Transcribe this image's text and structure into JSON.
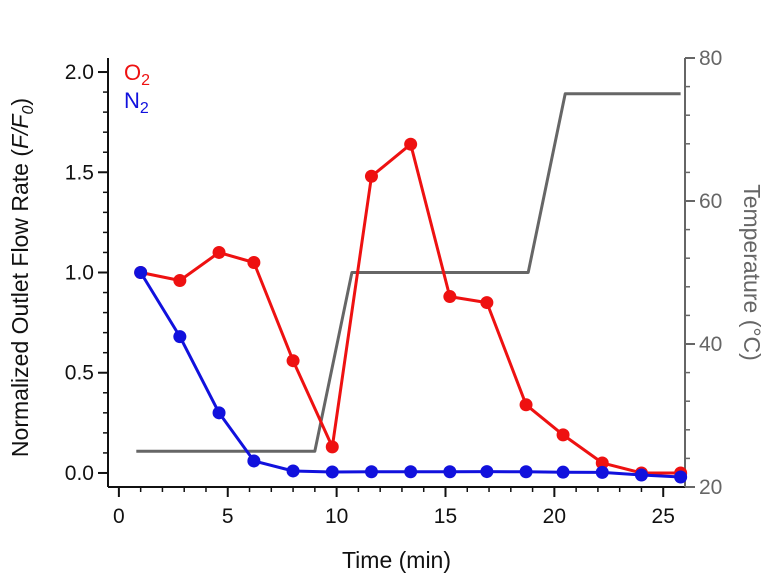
{
  "chart_data": {
    "type": "line",
    "xlabel": "Time (min)",
    "ylabel_left": {
      "main": "Normalized Outlet Flow Rate (",
      "italic": "F/F",
      "sub": "0",
      "close": ")"
    },
    "ylabel_right": "Temperature (°C)",
    "xlim": [
      -0.5,
      26
    ],
    "ylim_left": [
      -0.07,
      2.07
    ],
    "ylim_right": [
      20,
      80
    ],
    "x_ticks": [
      0,
      5,
      10,
      15,
      20,
      25
    ],
    "y_ticks_left": [
      "0.0",
      "0.5",
      "1.0",
      "1.5",
      "2.0"
    ],
    "y_ticks_right": [
      20,
      40,
      60,
      80
    ],
    "grid": false,
    "legend_position": "top-left",
    "series": [
      {
        "name": "O2",
        "legend": {
          "base": "O",
          "sub": "2"
        },
        "axis": "left",
        "color": "#ee1111",
        "markers": true,
        "x": [
          1.0,
          2.8,
          4.6,
          6.2,
          8.0,
          9.8,
          11.6,
          13.4,
          15.2,
          16.9,
          18.7,
          20.4,
          22.2,
          24.0,
          25.8
        ],
        "y": [
          1.0,
          0.96,
          1.1,
          1.05,
          0.56,
          0.13,
          1.48,
          1.64,
          0.88,
          0.85,
          0.34,
          0.19,
          0.05,
          0.0,
          0.0
        ]
      },
      {
        "name": "N2",
        "legend": {
          "base": "N",
          "sub": "2"
        },
        "axis": "left",
        "color": "#1111dd",
        "markers": true,
        "x": [
          1.0,
          2.8,
          4.6,
          6.2,
          8.0,
          9.8,
          11.6,
          13.4,
          15.2,
          16.9,
          18.7,
          20.4,
          22.2,
          24.0,
          25.8
        ],
        "y": [
          1.0,
          0.68,
          0.3,
          0.06,
          0.01,
          0.005,
          0.006,
          0.006,
          0.006,
          0.007,
          0.006,
          0.004,
          0.003,
          -0.01,
          -0.02
        ]
      },
      {
        "name": "Temperature",
        "axis": "right",
        "color": "#666666",
        "markers": false,
        "x": [
          0.8,
          9.0,
          10.7,
          18.8,
          20.5,
          25.8
        ],
        "y": [
          25,
          25,
          50,
          50,
          75,
          75
        ]
      }
    ]
  }
}
